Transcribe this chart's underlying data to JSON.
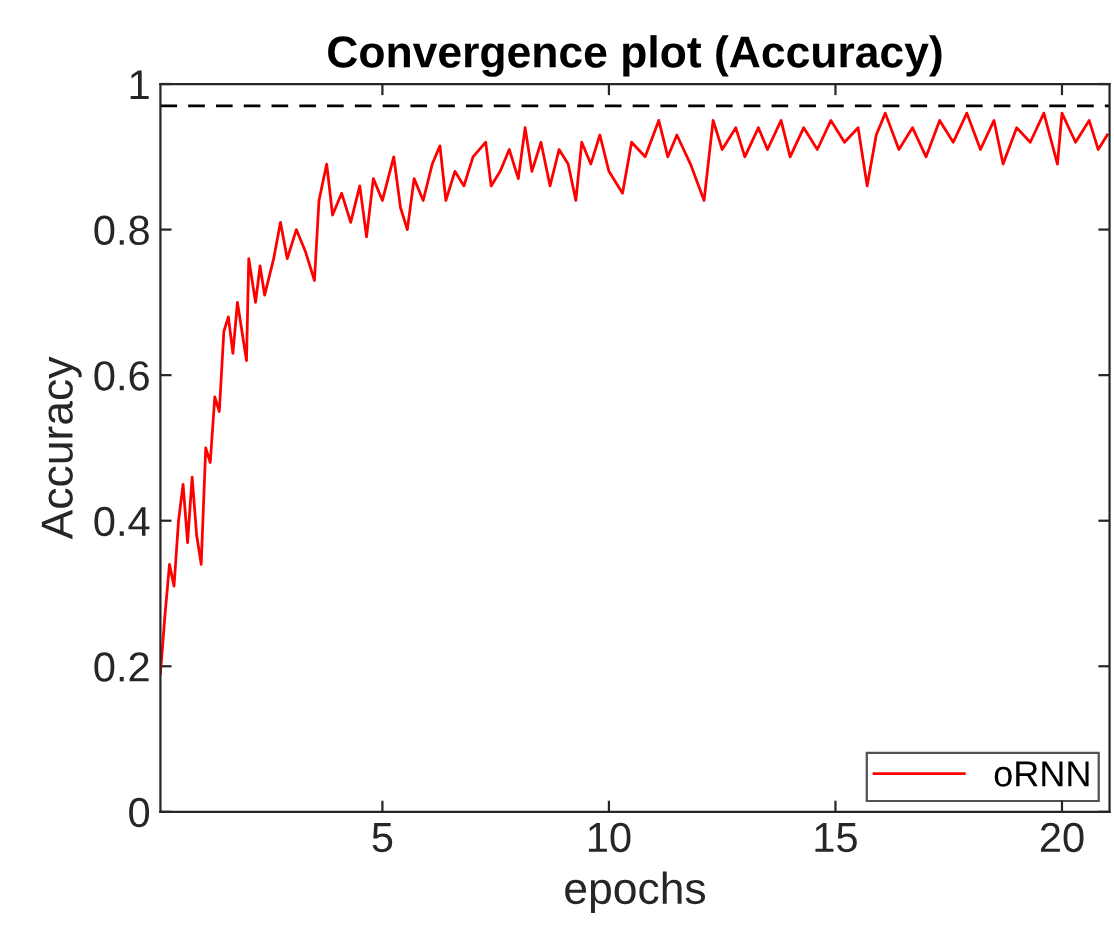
{
  "chart_data": {
    "type": "line",
    "title": "Convergence plot (Accuracy)",
    "xlabel": "epochs",
    "ylabel": "Accuracy",
    "xlim": [
      0.1,
      21.05
    ],
    "ylim": [
      0,
      1
    ],
    "xticks": [
      5,
      10,
      15,
      20
    ],
    "yticks": [
      0,
      0.2,
      0.4,
      0.6,
      0.8,
      1
    ],
    "grid": false,
    "legend": "bottom right",
    "line_style": "solid",
    "ref_lines": [
      {
        "axis": "y",
        "value": 0.97,
        "color": "#000000",
        "line_style": "dashed"
      }
    ],
    "series": [
      {
        "name": "oRNN",
        "color": "#ff0000",
        "x": [
          0.1,
          0.2,
          0.3,
          0.4,
          0.5,
          0.6,
          0.7,
          0.8,
          0.9,
          1.0,
          1.1,
          1.2,
          1.3,
          1.4,
          1.5,
          1.6,
          1.7,
          1.8,
          1.9,
          2.0,
          2.05,
          2.2,
          2.3,
          2.4,
          2.6,
          2.75,
          2.9,
          3.1,
          3.3,
          3.5,
          3.6,
          3.77,
          3.9,
          4.1,
          4.3,
          4.5,
          4.65,
          4.8,
          5.0,
          5.25,
          5.4,
          5.55,
          5.7,
          5.9,
          6.1,
          6.27,
          6.4,
          6.6,
          6.8,
          7.0,
          7.28,
          7.4,
          7.6,
          7.8,
          8.0,
          8.15,
          8.3,
          8.5,
          8.7,
          8.9,
          9.1,
          9.27,
          9.4,
          9.6,
          9.8,
          10.0,
          10.3,
          10.5,
          10.8,
          11.1,
          11.3,
          11.5,
          11.8,
          12.1,
          12.3,
          12.5,
          12.8,
          13.0,
          13.3,
          13.5,
          13.8,
          14.0,
          14.3,
          14.6,
          14.9,
          15.2,
          15.5,
          15.7,
          15.9,
          16.1,
          16.4,
          16.7,
          17.0,
          17.3,
          17.6,
          17.9,
          18.2,
          18.5,
          18.7,
          19.0,
          19.3,
          19.6,
          19.9,
          20.0,
          20.3,
          20.6,
          20.8,
          21.0
        ],
        "values": [
          0.19,
          0.27,
          0.34,
          0.31,
          0.4,
          0.45,
          0.37,
          0.46,
          0.38,
          0.34,
          0.5,
          0.48,
          0.57,
          0.55,
          0.66,
          0.68,
          0.63,
          0.7,
          0.66,
          0.62,
          0.76,
          0.7,
          0.75,
          0.71,
          0.76,
          0.81,
          0.76,
          0.8,
          0.77,
          0.73,
          0.84,
          0.89,
          0.82,
          0.85,
          0.81,
          0.86,
          0.79,
          0.87,
          0.84,
          0.9,
          0.83,
          0.8,
          0.87,
          0.84,
          0.89,
          0.915,
          0.84,
          0.88,
          0.86,
          0.9,
          0.92,
          0.86,
          0.88,
          0.91,
          0.87,
          0.94,
          0.88,
          0.92,
          0.86,
          0.91,
          0.89,
          0.84,
          0.92,
          0.89,
          0.93,
          0.88,
          0.85,
          0.92,
          0.9,
          0.95,
          0.9,
          0.93,
          0.89,
          0.84,
          0.95,
          0.91,
          0.94,
          0.9,
          0.94,
          0.91,
          0.95,
          0.9,
          0.94,
          0.91,
          0.95,
          0.92,
          0.94,
          0.86,
          0.93,
          0.96,
          0.91,
          0.94,
          0.9,
          0.95,
          0.92,
          0.96,
          0.91,
          0.95,
          0.89,
          0.94,
          0.92,
          0.96,
          0.89,
          0.96,
          0.92,
          0.95,
          0.91,
          0.93
        ]
      }
    ]
  }
}
